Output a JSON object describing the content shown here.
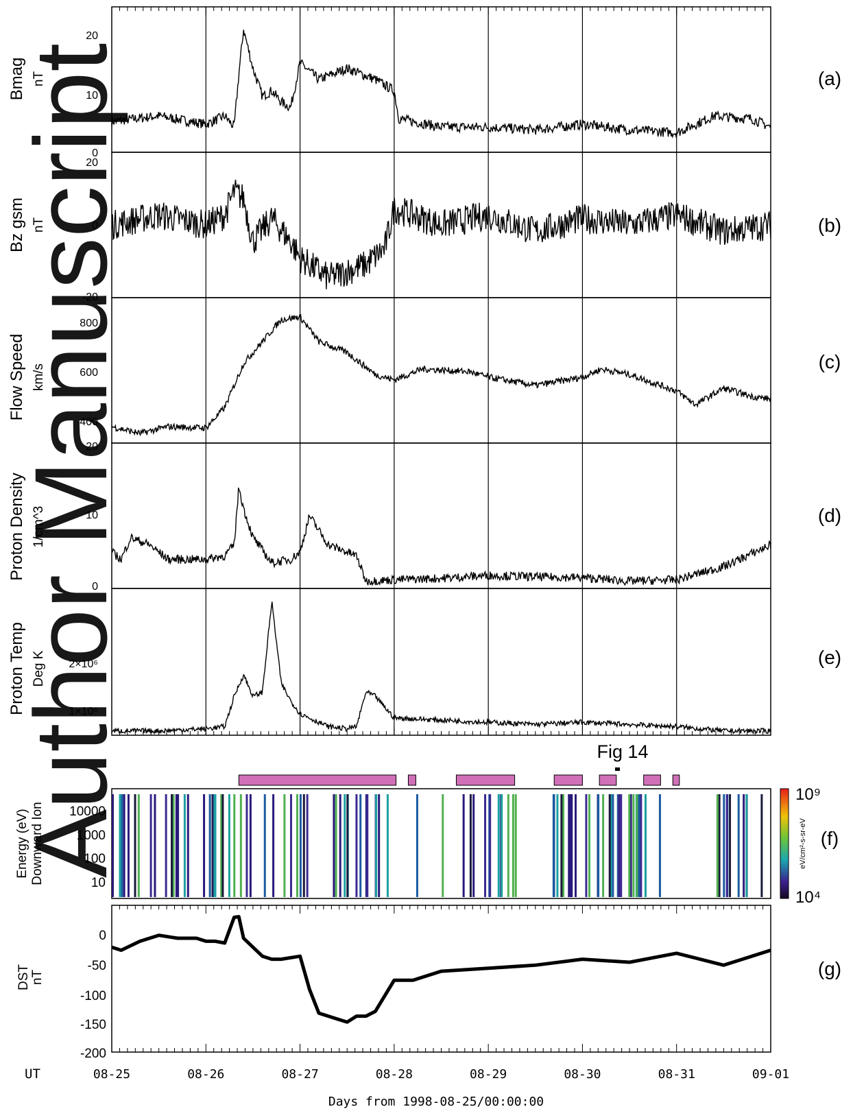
{
  "watermark": "Author Manuscript",
  "x_axis": {
    "ut_label": "UT",
    "ticks": [
      "08-25",
      "08-26",
      "08-27",
      "08-28",
      "08-29",
      "08-30",
      "08-31",
      "09-01"
    ],
    "title": "Days from 1998-08-25/00:00:00",
    "range_days": [
      0,
      7
    ]
  },
  "panels": [
    {
      "id": "a",
      "label": "(a)",
      "ylabel": "Bmag",
      "yunit": "nT",
      "ticks": [
        "20",
        "10",
        "0"
      ],
      "ylim": [
        0,
        26
      ]
    },
    {
      "id": "b",
      "label": "(b)",
      "ylabel": "Bz gsm",
      "yunit": "nT",
      "ticks": [
        "20",
        "0",
        "-20"
      ],
      "ylim": [
        -22,
        22
      ]
    },
    {
      "id": "c",
      "label": "(c)",
      "ylabel": "Flow Speed",
      "yunit": "km/s",
      "ticks": [
        "800",
        "600",
        "400"
      ],
      "ylim": [
        350,
        880
      ]
    },
    {
      "id": "d",
      "label": "(d)",
      "ylabel": "Proton Density",
      "yunit": "1/cm^3",
      "ticks": [
        "20",
        "10",
        "0"
      ],
      "ylim": [
        0,
        20
      ]
    },
    {
      "id": "e",
      "label": "(e)",
      "ylabel": "Proton Temp",
      "yunit": "Deg K",
      "ticks": [
        "2×10⁶",
        "1×10⁶"
      ],
      "ylim": [
        0,
        3.4
      ]
    },
    {
      "id": "f",
      "label": "(f)",
      "ylabel": "Energy (eV)",
      "yunit": "Downward Ion",
      "ticks": [
        "10000",
        "1000",
        "100",
        "10"
      ],
      "colorbar": {
        "top": "10⁹",
        "bottom": "10⁴",
        "unit": "eV/cm²-s-sr-eV"
      }
    },
    {
      "id": "g",
      "label": "(g)",
      "ylabel": "DST",
      "yunit": "nT",
      "ticks": [
        "0",
        "-50",
        "-100",
        "-150",
        "-200"
      ],
      "ylim": [
        -200,
        45
      ]
    }
  ],
  "annotation": "Fig 14",
  "marker_bars_days": [
    [
      1.35,
      3.02
    ],
    [
      3.15,
      3.23
    ],
    [
      3.66,
      4.28
    ],
    [
      4.7,
      5.0
    ],
    [
      5.18,
      5.36
    ],
    [
      5.65,
      5.83
    ],
    [
      5.96,
      6.03
    ]
  ],
  "chart_data": [
    {
      "type": "line",
      "panel": "a",
      "ylabel": "Bmag",
      "x": [
        0,
        0.5,
        1,
        1.2,
        1.3,
        1.35,
        1.4,
        1.5,
        1.6,
        1.7,
        1.8,
        1.9,
        2,
        2.2,
        2.5,
        2.8,
        3,
        3.05,
        3.5,
        4,
        4.5,
        5,
        5.5,
        6,
        6.2,
        6.4,
        6.8,
        7
      ],
      "y": [
        5.5,
        6.5,
        5,
        6.5,
        4.5,
        14,
        22,
        15,
        10,
        11,
        9,
        8,
        16,
        13,
        15,
        13,
        11,
        6,
        4.5,
        4.5,
        4,
        5,
        4,
        3.5,
        5,
        6.5,
        6,
        4.5
      ]
    },
    {
      "type": "line",
      "panel": "b",
      "ylabel": "Bz gsm",
      "x": [
        0,
        0.5,
        1,
        1.2,
        1.3,
        1.4,
        1.5,
        1.7,
        1.9,
        2,
        2.1,
        2.3,
        2.5,
        2.7,
        2.9,
        3,
        3.5,
        4,
        4.5,
        5,
        5.5,
        6,
        6.5,
        7
      ],
      "y": [
        0,
        3,
        0,
        3,
        10,
        8,
        -5,
        2,
        -5,
        -10,
        -12,
        -16,
        -14,
        -12,
        -7,
        5,
        0,
        3,
        -2,
        2,
        0,
        3,
        -2,
        0
      ]
    },
    {
      "type": "line",
      "panel": "c",
      "ylabel": "Flow Speed",
      "x": [
        0,
        0.3,
        0.6,
        1,
        1.2,
        1.3,
        1.4,
        1.6,
        1.8,
        2,
        2.2,
        2.5,
        2.8,
        3,
        3.3,
        3.8,
        4,
        4.5,
        5,
        5.2,
        5.5,
        6,
        6.2,
        6.5,
        6.8,
        7
      ],
      "y": [
        410,
        385,
        410,
        405,
        480,
        560,
        640,
        720,
        800,
        810,
        720,
        680,
        600,
        580,
        620,
        610,
        590,
        560,
        590,
        620,
        600,
        540,
        490,
        550,
        520,
        510
      ]
    },
    {
      "type": "line",
      "panel": "d",
      "ylabel": "Proton Density",
      "x": [
        0,
        0.1,
        0.2,
        0.4,
        0.6,
        0.8,
        1,
        1.2,
        1.3,
        1.35,
        1.4,
        1.5,
        1.7,
        1.9,
        2,
        2.1,
        2.3,
        2.5,
        2.6,
        2.7,
        3,
        3.5,
        4,
        4.5,
        5,
        5.5,
        6,
        6.5,
        7
      ],
      "y": [
        5,
        4,
        7,
        6,
        4,
        4,
        4,
        4.5,
        6,
        14,
        11,
        7,
        3.5,
        4,
        5,
        10,
        6,
        5,
        4.5,
        1,
        1.2,
        1.4,
        1.8,
        1.6,
        1.5,
        1,
        1.2,
        3,
        6
      ]
    },
    {
      "type": "line",
      "panel": "e",
      "ylabel": "Proton Temp",
      "x": [
        0,
        0.5,
        1,
        1.2,
        1.3,
        1.4,
        1.5,
        1.6,
        1.7,
        1.8,
        1.9,
        2,
        2.1,
        2.3,
        2.5,
        2.6,
        2.7,
        2.8,
        3,
        3.5,
        4,
        4.5,
        5,
        5.5,
        6,
        6.5,
        7
      ],
      "y": [
        0.1,
        0.1,
        0.15,
        0.2,
        0.9,
        1.4,
        0.9,
        1.0,
        3.1,
        1.2,
        0.8,
        0.5,
        0.4,
        0.2,
        0.15,
        0.2,
        1.0,
        0.9,
        0.4,
        0.35,
        0.3,
        0.25,
        0.3,
        0.25,
        0.2,
        0.1,
        0.1
      ]
    },
    {
      "type": "line",
      "panel": "g",
      "ylabel": "DST",
      "x": [
        0,
        0.1,
        0.3,
        0.5,
        0.7,
        0.9,
        1,
        1.1,
        1.2,
        1.3,
        1.35,
        1.4,
        1.5,
        1.6,
        1.7,
        1.8,
        2,
        2.1,
        2.2,
        2.4,
        2.5,
        2.6,
        2.7,
        2.8,
        3,
        3.2,
        3.5,
        4,
        4.5,
        5,
        5.5,
        6,
        6.5,
        7
      ],
      "y": [
        -25,
        -30,
        -15,
        -5,
        -10,
        -10,
        -15,
        -15,
        -18,
        25,
        26,
        -10,
        -25,
        -40,
        -45,
        -45,
        -40,
        -95,
        -135,
        -145,
        -150,
        -140,
        -140,
        -132,
        -80,
        -80,
        -65,
        -60,
        -55,
        -45,
        -50,
        -35,
        -55,
        -30
      ]
    }
  ]
}
